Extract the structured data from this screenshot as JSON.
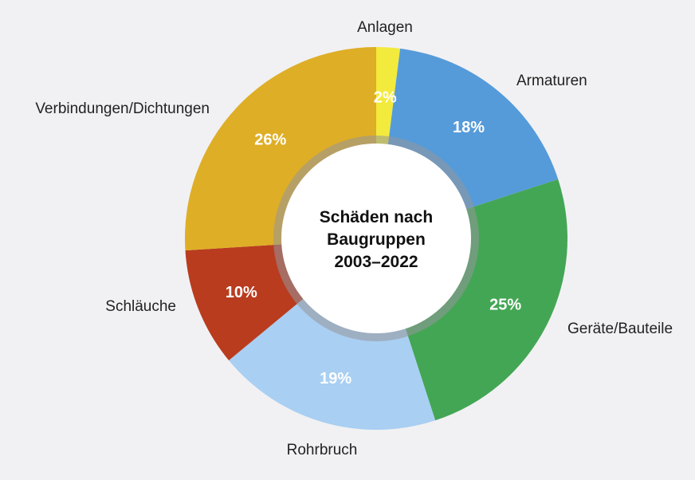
{
  "chart_data": {
    "type": "pie",
    "title_lines": [
      "Schäden nach",
      "Baugruppen",
      "2003–2022"
    ],
    "unit": "%",
    "slices": [
      {
        "name": "Anlagen",
        "value": 2,
        "color": "#f2ea3d"
      },
      {
        "name": "Armaturen",
        "value": 18,
        "color": "#559bd9"
      },
      {
        "name": "Geräte/Bauteile",
        "value": 25,
        "color": "#43a654"
      },
      {
        "name": "Rohrbruch",
        "value": 19,
        "color": "#a9cff2"
      },
      {
        "name": "Schläuche",
        "value": 10,
        "color": "#b93c1f"
      },
      {
        "name": "Verbindungen/Dichtungen",
        "value": 26,
        "color": "#deae26"
      }
    ]
  }
}
